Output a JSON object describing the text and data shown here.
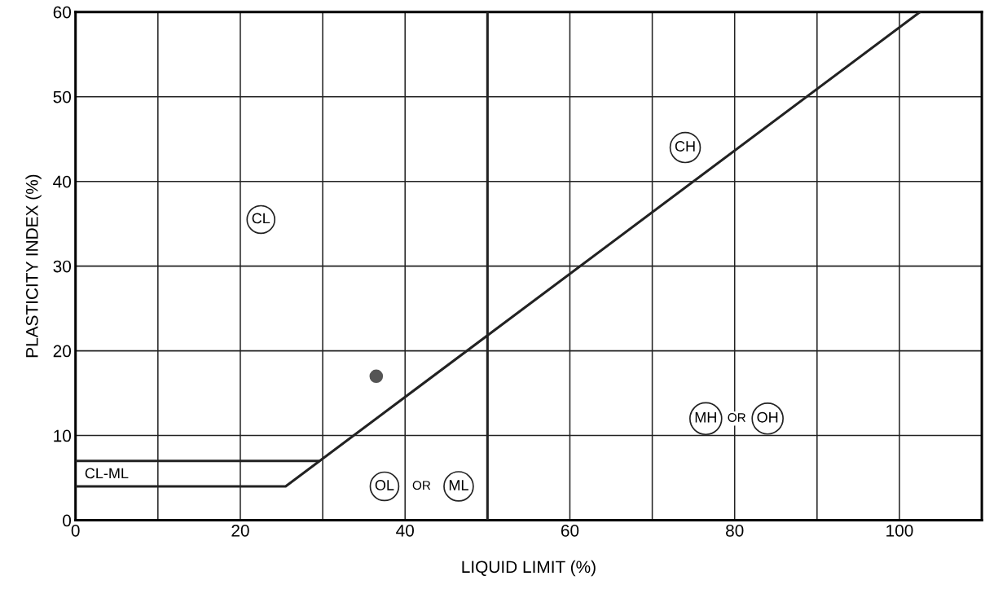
{
  "chart_data": {
    "type": "line",
    "xlabel": "LIQUID LIMIT (%)",
    "ylabel": "PLASTICITY INDEX (%)",
    "xlim": [
      0,
      110
    ],
    "ylim": [
      0,
      60
    ],
    "xticks": [
      0,
      {
        "value": 10,
        "label": null
      },
      20,
      {
        "value": 30,
        "label": null
      },
      40,
      {
        "value": 50,
        "label": null
      },
      60,
      {
        "value": 70,
        "label": null
      },
      80,
      {
        "value": 90,
        "label": null
      },
      100
    ],
    "yticks": [
      0,
      10,
      20,
      30,
      40,
      50,
      60
    ],
    "grid": true,
    "line_style": "solid",
    "series": [
      {
        "color": "#222222",
        "x": [
          0,
          25.5,
          102.5
        ],
        "values": [
          4,
          4,
          60
        ]
      },
      {
        "color": "#222222",
        "x": [
          0,
          29.5
        ],
        "values": [
          7,
          7
        ]
      },
      {
        "type": "scatter",
        "marker": "circle",
        "color": "#555555",
        "x": [
          36.5
        ],
        "values": [
          17
        ]
      }
    ],
    "ref_lines": [
      {
        "axis": "x",
        "value": 50,
        "color": "#222222",
        "line_style": "solid"
      }
    ],
    "annotations": [
      {
        "text": "CL",
        "x": 22.5,
        "y": 35.5
      },
      {
        "text": "CH",
        "x": 74,
        "y": 44
      },
      {
        "text": "MH",
        "x": 76.5,
        "y": 12
      },
      "OR",
      {
        "text": "OH",
        "x": 84,
        "y": 12
      },
      {
        "text": "OL",
        "x": 37.5,
        "y": 4
      },
      "OR",
      {
        "text": "ML",
        "x": 46.5,
        "y": 4
      },
      "CL-ML"
    ]
  }
}
